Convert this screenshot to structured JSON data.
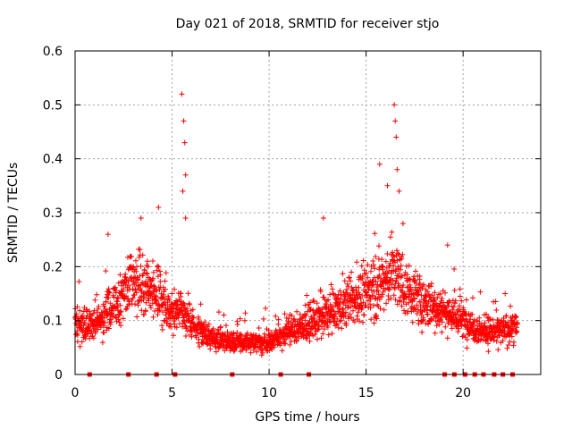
{
  "chart_data": {
    "type": "scatter",
    "title": "Day 021 of 2018, SRMTID for receiver stjo",
    "xlabel": "GPS time / hours",
    "ylabel": "SRMTID / TECUs",
    "xlim": [
      0,
      24
    ],
    "ylim": [
      0,
      0.6
    ],
    "xticks": [
      0,
      5,
      10,
      15,
      20
    ],
    "xtick_labels": [
      "0",
      "5",
      "10",
      "15",
      "20"
    ],
    "yticks": [
      0,
      0.1,
      0.2,
      0.3,
      0.4,
      0.5,
      0.6
    ],
    "ytick_labels": [
      "0",
      "0.1",
      "0.2",
      "0.3",
      "0.4",
      "0.5",
      "0.6"
    ],
    "grid": true,
    "marker": "+",
    "color": "#ff0000",
    "trend": {
      "description": "baseline level of SRMTID vs GPS hour",
      "x": [
        0,
        1,
        2,
        3,
        4,
        5,
        5.5,
        6,
        7,
        8,
        9,
        10,
        11,
        12,
        13,
        14,
        15,
        15.8,
        16.4,
        17,
        18,
        19,
        20,
        21,
        22,
        22.8
      ],
      "y": [
        0.1,
        0.09,
        0.13,
        0.17,
        0.16,
        0.11,
        0.12,
        0.09,
        0.07,
        0.06,
        0.06,
        0.06,
        0.08,
        0.09,
        0.11,
        0.13,
        0.15,
        0.17,
        0.19,
        0.16,
        0.13,
        0.12,
        0.1,
        0.08,
        0.08,
        0.09
      ]
    },
    "peaks": [
      {
        "x": 1.7,
        "y": 0.26
      },
      {
        "x": 3.4,
        "y": 0.29
      },
      {
        "x": 4.3,
        "y": 0.31
      },
      {
        "x": 5.5,
        "y": 0.52
      },
      {
        "x": 5.6,
        "y": 0.47
      },
      {
        "x": 5.65,
        "y": 0.43
      },
      {
        "x": 5.7,
        "y": 0.37
      },
      {
        "x": 5.55,
        "y": 0.34
      },
      {
        "x": 5.7,
        "y": 0.29
      },
      {
        "x": 12.8,
        "y": 0.29
      },
      {
        "x": 15.7,
        "y": 0.39
      },
      {
        "x": 16.1,
        "y": 0.35
      },
      {
        "x": 16.45,
        "y": 0.5
      },
      {
        "x": 16.5,
        "y": 0.47
      },
      {
        "x": 16.55,
        "y": 0.44
      },
      {
        "x": 16.6,
        "y": 0.38
      },
      {
        "x": 16.7,
        "y": 0.34
      },
      {
        "x": 16.9,
        "y": 0.28
      },
      {
        "x": 19.2,
        "y": 0.24
      }
    ],
    "zero_markers_x": [
      0.75,
      2.75,
      4.2,
      5.15,
      8.1,
      10.6,
      12.05,
      19.05,
      19.55,
      20.1,
      20.6,
      21.05,
      21.6,
      22.05,
      22.55
    ]
  }
}
